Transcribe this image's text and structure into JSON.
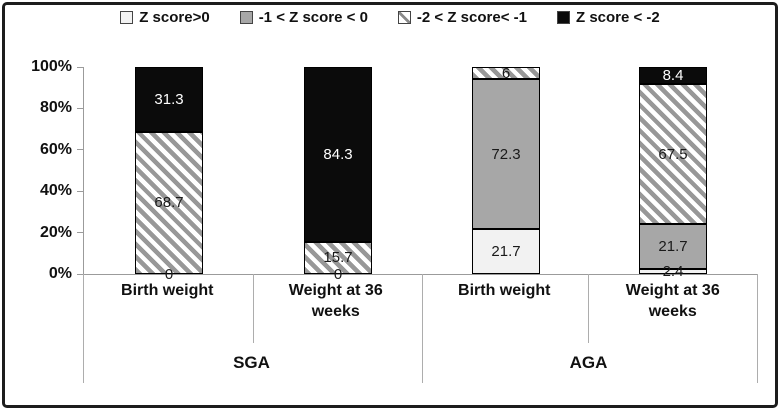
{
  "legend": {
    "items": [
      {
        "label": "Z score>0",
        "swatch": "white-square"
      },
      {
        "label": "-1 < Z score < 0",
        "swatch": "gray-square"
      },
      {
        "label": "-2 < Z score< -1",
        "swatch": "diagonal-hatch-square"
      },
      {
        "label": "Z score < -2",
        "swatch": "black-square"
      }
    ]
  },
  "y_axis": {
    "ticks": [
      "100%",
      "80%",
      "60%",
      "40%",
      "20%",
      "0%"
    ]
  },
  "x_axis": {
    "categories": [
      "Birth weight",
      "Weight at 36 weeks",
      "Birth weight",
      "Weight at 36 weeks"
    ],
    "groups": [
      "SGA",
      "AGA"
    ]
  },
  "base_labels": [
    "0",
    "0",
    null,
    null
  ],
  "colors": {
    "segment_white": "#f2f2f2",
    "segment_gray": "#a7a7a7",
    "hatch_stripe": "#989898",
    "segment_black": "#0b0b0b",
    "axis_line": "#9b9b9b",
    "frame_border": "#1d1d1d"
  },
  "chart_data": {
    "type": "bar",
    "stacked": true,
    "unit": "percent",
    "categories": [
      "SGA Birth weight",
      "SGA Weight at 36 weeks",
      "AGA Birth weight",
      "AGA Weight at 36 weeks"
    ],
    "series": [
      {
        "name": "Z score>0",
        "style": "white",
        "values": [
          0,
          0,
          21.7,
          2.4
        ]
      },
      {
        "name": "-1 < Z score < 0",
        "style": "gray",
        "values": [
          0,
          0,
          72.3,
          21.7
        ]
      },
      {
        "name": "-2 < Z score< -1",
        "style": "hatch",
        "values": [
          68.7,
          15.7,
          6,
          67.5
        ]
      },
      {
        "name": "Z score < -2",
        "style": "black",
        "values": [
          31.3,
          84.3,
          0,
          8.4
        ]
      }
    ],
    "ylim": [
      0,
      100
    ],
    "ytick_labels": [
      "0%",
      "20%",
      "40%",
      "60%",
      "80%",
      "100%"
    ],
    "legend_position": "top",
    "grid": false
  }
}
